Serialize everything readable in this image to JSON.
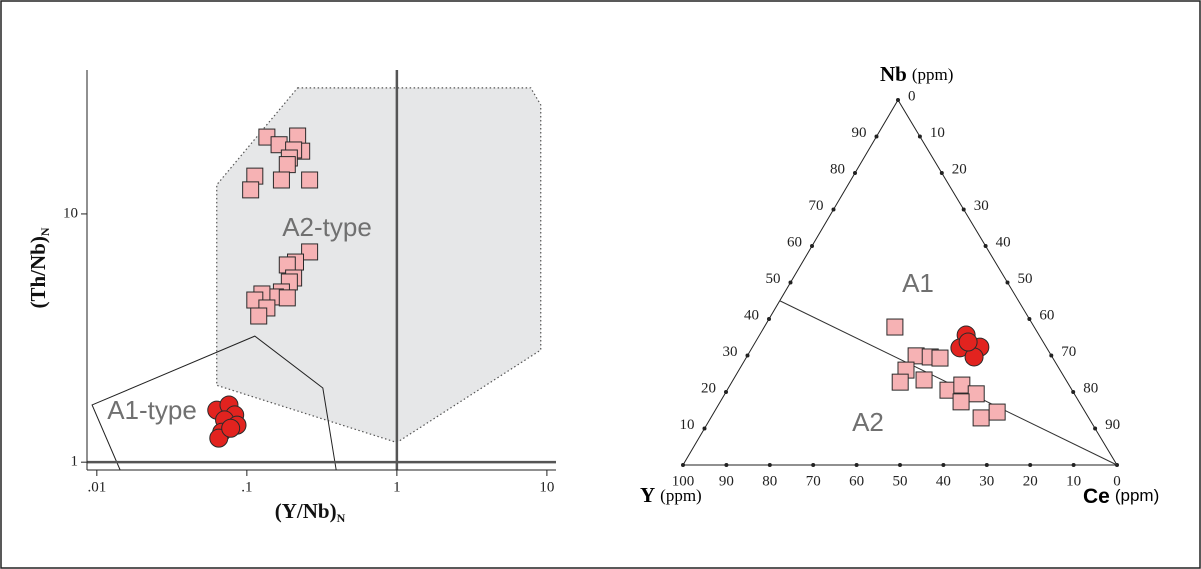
{
  "chart_data": [
    {
      "type": "scatter",
      "xscale": "log",
      "yscale": "log",
      "xlabel": "(Y/Nb)",
      "xlabel_sub": "N",
      "ylabel": "(Th/Nb)",
      "ylabel_sub": "N",
      "xlim": [
        0.0086,
        11.5
      ],
      "ylim": [
        0.93,
        38
      ],
      "xticks": [
        {
          "value": 0.01,
          "label": ".01"
        },
        {
          "value": 0.1,
          "label": ".1"
        },
        1,
        10
      ],
      "yticks": [
        1,
        10
      ],
      "ref_lines": {
        "x": [
          1
        ],
        "y": [
          1
        ]
      },
      "fields": [
        {
          "label": "A2-type",
          "style": "shaded",
          "x": [
            0.218,
            7.8,
            9.1,
            9.1,
            1,
            0.063,
            0.063
          ],
          "y": [
            32.2,
            32.2,
            27.5,
            2.83,
            1.2,
            2.04,
            13.1
          ]
        },
        {
          "label": "A1-type",
          "style": "outline",
          "x": [
            0.0093,
            0.113,
            0.321,
            0.394,
            0.0143
          ],
          "y": [
            1.7,
            3.22,
            1.99,
            0.93,
            0.93
          ]
        }
      ],
      "series": [
        {
          "marker": "square",
          "color": "#f6b2b4",
          "x": [
            0.136,
            0.218,
            0.164,
            0.232,
            0.205,
            0.192,
            0.186,
            0.113,
            0.17,
            0.262,
            0.106,
            0.262,
            0.211,
            0.186,
            0.205,
            0.192,
            0.17,
            0.155,
            0.126,
            0.113,
            0.136,
            0.12,
            0.186
          ],
          "values": [
            20.4,
            20.6,
            19.0,
            17.9,
            18.1,
            16.8,
            15.8,
            14.2,
            13.7,
            13.7,
            12.5,
            7.03,
            6.4,
            6.23,
            5.52,
            5.32,
            4.85,
            4.63,
            4.76,
            4.5,
            4.18,
            3.88,
            4.59
          ]
        },
        {
          "marker": "circle",
          "color": "#e2231f",
          "x": [
            0.063,
            0.076,
            0.083,
            0.071,
            0.086,
            0.068,
            0.065,
            0.078
          ],
          "values": [
            1.62,
            1.7,
            1.55,
            1.48,
            1.41,
            1.32,
            1.25,
            1.37
          ]
        }
      ]
    },
    {
      "type": "ternary",
      "top_label": "Nb",
      "top_unit": "(ppm)",
      "left_label": "Y",
      "left_unit": "(ppm)",
      "right_label": "Ce",
      "right_unit": "(ppm)",
      "left_edge_ticks": [
        10,
        20,
        30,
        40,
        50,
        60,
        70,
        80,
        90
      ],
      "bottom_edge_ticks": [
        100,
        90,
        80,
        70,
        60,
        50,
        40,
        30,
        20,
        10,
        0
      ],
      "right_edge_ticks": [
        0,
        10,
        20,
        30,
        40,
        50,
        60,
        70,
        80,
        90
      ],
      "boundary": {
        "nb": [
          45,
          0
        ],
        "y": [
          55,
          0
        ],
        "ce": [
          0,
          100
        ]
      },
      "region_labels": [
        "A1",
        "A2"
      ],
      "series": [
        {
          "marker": "square",
          "color": "#f6b2b4",
          "nb": [
            37.8,
            29.9,
            29.6,
            29.3,
            26.0,
            22.7,
            23.3,
            20.5,
            21.9,
            19.5,
            17.3,
            12.9,
            14.5
          ],
          "y": [
            32.1,
            31.2,
            28.1,
            26.0,
            35.5,
            38.5,
            32.7,
            28.6,
            24.7,
            22.6,
            27.2,
            24.8,
            20.3
          ],
          "ce": [
            30.1,
            38.9,
            42.3,
            44.7,
            38.5,
            38.8,
            44.0,
            50.9,
            53.4,
            57.9,
            55.5,
            62.3,
            65.2
          ]
        },
        {
          "marker": "circle",
          "color": "#e2231f",
          "nb": [
            35.6,
            32.3,
            32.1,
            29.6,
            33.7
          ],
          "y": [
            16.8,
            15.3,
            20.0,
            18.0,
            17.3
          ],
          "ce": [
            47.6,
            52.4,
            47.9,
            52.4,
            49.0
          ]
        }
      ]
    }
  ]
}
